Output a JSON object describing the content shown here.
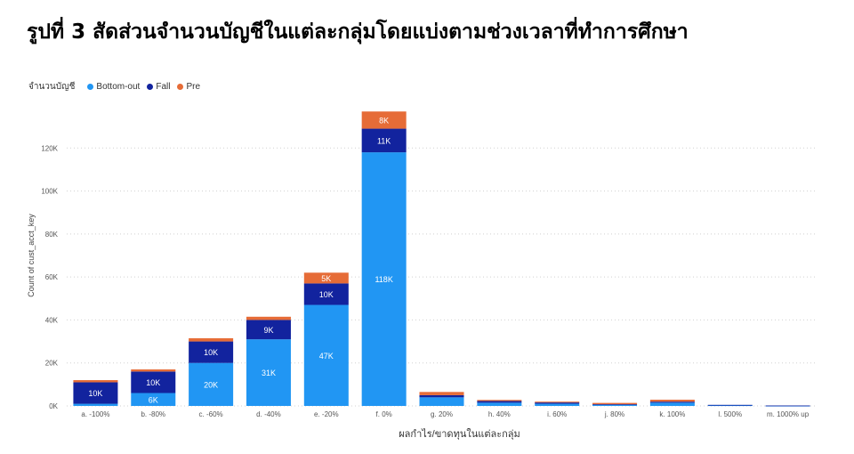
{
  "title": "รูปที่ 3 สัดส่วนจำนวนบัญชีในแต่ละกลุ่มโดยแบ่งตามช่วงเวลาที่ทำการศึกษา",
  "chart_data": {
    "type": "bar",
    "stacked": true,
    "legend_title": "จำนวนบัญชี",
    "legend_position": "top-left",
    "xlabel": "ผลกำไร/ขาดทุนในแต่ละกลุ่ม",
    "ylabel": "Count of cust_acct_key",
    "ylim": [
      0,
      140000
    ],
    "yticks": [
      0,
      20000,
      40000,
      60000,
      80000,
      100000,
      120000
    ],
    "ytick_labels": [
      "0K",
      "20K",
      "40K",
      "60K",
      "80K",
      "100K",
      "120K"
    ],
    "grid": true,
    "categories": [
      "a. -100%",
      "b. -80%",
      "c. -60%",
      "d. -40%",
      "e. -20%",
      "f. 0%",
      "g. 20%",
      "h. 40%",
      "i. 60%",
      "j. 80%",
      "k. 100%",
      "l. 500%",
      "m. 1000% up"
    ],
    "series": [
      {
        "name": "Bottom-out",
        "color": "#2196F3",
        "values": [
          1000,
          6000,
          20000,
          31000,
          47000,
          118000,
          4000,
          1500,
          1000,
          500,
          1500,
          300,
          100
        ],
        "labels": [
          "",
          "6K",
          "20K",
          "31K",
          "47K",
          "118K",
          "",
          "",
          "",
          "",
          "",
          "",
          ""
        ]
      },
      {
        "name": "Fall",
        "color": "#12239E",
        "values": [
          10000,
          10000,
          10000,
          9000,
          10000,
          11000,
          1000,
          800,
          600,
          300,
          500,
          200,
          100
        ],
        "labels": [
          "10K",
          "10K",
          "10K",
          "9K",
          "10K",
          "11K",
          "",
          "",
          "",
          "",
          "",
          "",
          ""
        ]
      },
      {
        "name": "Pre",
        "color": "#E66C37",
        "values": [
          1000,
          1000,
          1500,
          1500,
          5000,
          8000,
          1500,
          500,
          400,
          600,
          900,
          0,
          0
        ],
        "labels": [
          "",
          "",
          "",
          "",
          "5K",
          "8K",
          "",
          "",
          "",
          "",
          "",
          "",
          ""
        ]
      }
    ]
  }
}
